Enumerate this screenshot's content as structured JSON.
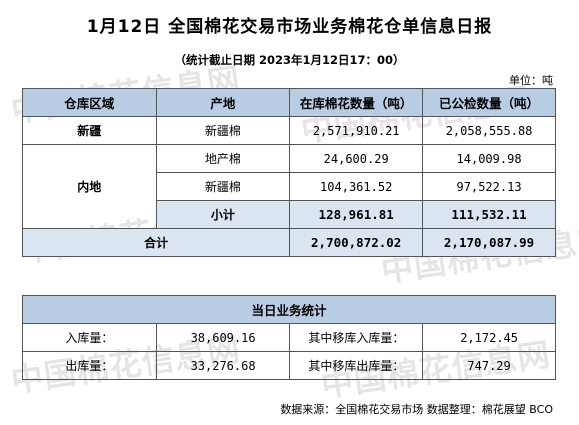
{
  "title": "1月12日 全国棉花交易市场业务棉花仓单信息日报",
  "subtitle": "（统计截止日期 2023年1月12日17：00）",
  "unit": "单位：吨",
  "watermark": "中国棉花信息网",
  "inventory_table": {
    "headers": [
      "仓库区域",
      "产地",
      "在库棉花数量（吨）",
      "已公检数量（吨）"
    ],
    "xinjiang": {
      "region": "新疆",
      "origin": "新疆棉",
      "in_stock": "2,571,910.21",
      "inspected": "2,058,555.88"
    },
    "inland": {
      "region": "内地",
      "rows": [
        {
          "origin": "地产棉",
          "in_stock": "24,600.29",
          "inspected": "14,009.98"
        },
        {
          "origin": "新疆棉",
          "in_stock": "104,361.52",
          "inspected": "97,522.13"
        }
      ],
      "subtotal_label": "小计",
      "subtotal_in_stock": "128,961.81",
      "subtotal_inspected": "111,532.11"
    },
    "total_label": "合计",
    "total_in_stock": "2,700,872.02",
    "total_inspected": "2,170,087.99"
  },
  "daily_table": {
    "header": "当日业务统计",
    "rows": [
      {
        "label1": "入库量：",
        "value1": "38,609.16",
        "label2": "其中移库入库量：",
        "value2": "2,172.45"
      },
      {
        "label1": "出库量：",
        "value1": "33,276.68",
        "label2": "其中移库出库量：",
        "value2": "747.29"
      }
    ]
  },
  "footer": "数据来源：全国棉花交易市场 数据整理：棉花展望 BCO"
}
